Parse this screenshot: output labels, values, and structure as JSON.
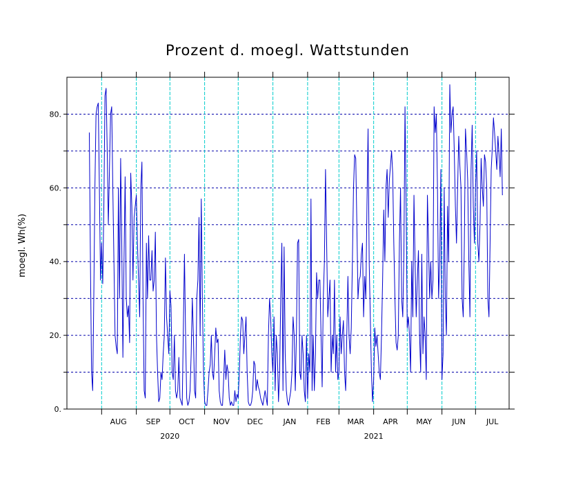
{
  "chart_data": {
    "type": "line",
    "title": "Prozent d. moegl. Wattstunden",
    "ylabel": "moegl. Wh(%)",
    "xlabel": "",
    "ylim": [
      0,
      90
    ],
    "yticks": [
      {
        "value": 0,
        "label": "0."
      },
      {
        "value": 20,
        "label": "20."
      },
      {
        "value": 40,
        "label": "40."
      },
      {
        "value": 60,
        "label": "60."
      },
      {
        "value": 80,
        "label": "80."
      }
    ],
    "ygrid_values": [
      10,
      20,
      30,
      40,
      50,
      60,
      70,
      80
    ],
    "grid": true,
    "x_start": "2020-07-01",
    "x_end": "2021-07-31",
    "month_boundaries": [
      "2020-08-01",
      "2020-09-01",
      "2020-10-01",
      "2020-11-01",
      "2020-12-01",
      "2021-01-01",
      "2021-02-01",
      "2021-03-01",
      "2021-04-01",
      "2021-05-01",
      "2021-06-01",
      "2021-07-01"
    ],
    "months": [
      {
        "label": "AUG",
        "date": "2020-08-16"
      },
      {
        "label": "SEP",
        "date": "2020-09-16"
      },
      {
        "label": "OCT",
        "date": "2020-10-16"
      },
      {
        "label": "NOV",
        "date": "2020-11-16"
      },
      {
        "label": "DEC",
        "date": "2020-12-16"
      },
      {
        "label": "JAN",
        "date": "2021-01-16"
      },
      {
        "label": "FEB",
        "date": "2021-02-15"
      },
      {
        "label": "MAR",
        "date": "2021-03-16"
      },
      {
        "label": "APR",
        "date": "2021-04-16"
      },
      {
        "label": "MAY",
        "date": "2021-05-16"
      },
      {
        "label": "JUN",
        "date": "2021-06-16"
      },
      {
        "label": "JUL",
        "date": "2021-07-16"
      }
    ],
    "years": [
      {
        "label": "2020",
        "date": "2020-10-01"
      },
      {
        "label": "2021",
        "date": "2021-04-01"
      }
    ],
    "series": [
      {
        "color": "#0000cc",
        "start_date": "2020-07-21",
        "values": [
          75,
          40,
          10,
          5,
          30,
          60,
          80,
          82,
          83,
          60,
          35,
          45,
          34,
          55,
          85,
          87,
          70,
          50,
          65,
          80,
          82,
          60,
          40,
          20,
          17,
          15,
          60,
          30,
          68,
          45,
          14,
          40,
          63,
          30,
          25,
          28,
          18,
          64,
          55,
          35,
          52,
          55,
          58,
          45,
          35,
          25,
          60,
          67,
          30,
          5,
          3,
          45,
          30,
          47,
          35,
          35,
          43,
          32,
          35,
          48,
          20,
          10,
          2,
          3,
          10,
          8,
          15,
          20,
          41,
          25,
          20,
          15,
          32,
          28,
          10,
          8,
          20,
          5,
          3,
          5,
          14,
          3,
          2,
          1,
          22,
          42,
          20,
          3,
          1,
          2,
          5,
          15,
          30,
          20,
          5,
          3,
          30,
          35,
          52,
          20,
          57,
          30,
          10,
          2,
          1,
          1,
          5,
          10,
          12,
          20,
          10,
          8,
          15,
          22,
          18,
          19,
          5,
          2,
          1,
          1,
          8,
          16,
          8,
          12,
          10,
          3,
          1,
          2,
          1,
          1,
          5,
          2,
          4,
          3,
          10,
          20,
          25,
          24,
          15,
          20,
          25,
          10,
          2,
          1,
          1,
          2,
          5,
          13,
          12,
          5,
          8,
          6,
          5,
          3,
          2,
          1,
          3,
          5,
          3,
          1,
          20,
          30,
          25,
          15,
          10,
          25,
          5,
          20,
          15,
          2,
          10,
          30,
          45,
          5,
          44,
          15,
          5,
          2,
          1,
          3,
          5,
          10,
          25,
          20,
          5,
          20,
          45,
          46,
          10,
          8,
          20,
          15,
          5,
          2,
          20,
          3,
          15,
          10,
          57,
          5,
          20,
          5,
          15,
          37,
          30,
          35,
          35,
          20,
          6,
          30,
          40,
          65,
          45,
          25,
          30,
          35,
          10,
          20,
          15,
          35,
          10,
          20,
          8,
          10,
          25,
          15,
          20,
          24,
          10,
          5,
          20,
          36,
          20,
          15,
          22,
          40,
          60,
          69,
          68,
          50,
          30,
          35,
          36,
          42,
          45,
          25,
          36,
          30,
          55,
          76,
          40,
          25,
          10,
          2,
          8,
          22,
          17,
          20,
          15,
          10,
          8,
          20,
          35,
          54,
          40,
          60,
          65,
          52,
          62,
          66,
          70,
          64,
          45,
          30,
          18,
          16,
          20,
          45,
          60,
          30,
          25,
          42,
          82,
          55,
          22,
          25,
          20,
          10,
          40,
          25,
          58,
          40,
          25,
          35,
          43,
          20,
          10,
          42,
          15,
          25,
          20,
          8,
          58,
          45,
          30,
          40,
          30,
          35,
          82,
          75,
          80,
          60,
          30,
          40,
          65,
          8,
          15,
          60,
          30,
          20,
          55,
          40,
          88,
          75,
          80,
          82,
          70,
          55,
          45,
          60,
          74,
          66,
          60,
          30,
          25,
          45,
          76,
          70,
          62,
          40,
          25,
          65,
          77,
          55,
          45,
          60,
          70,
          45,
          40,
          50,
          68,
          60,
          55,
          69,
          67,
          60,
          30,
          25,
          45,
          65,
          71,
          79,
          75,
          70,
          65,
          74,
          69,
          63,
          76,
          58
        ]
      }
    ]
  }
}
